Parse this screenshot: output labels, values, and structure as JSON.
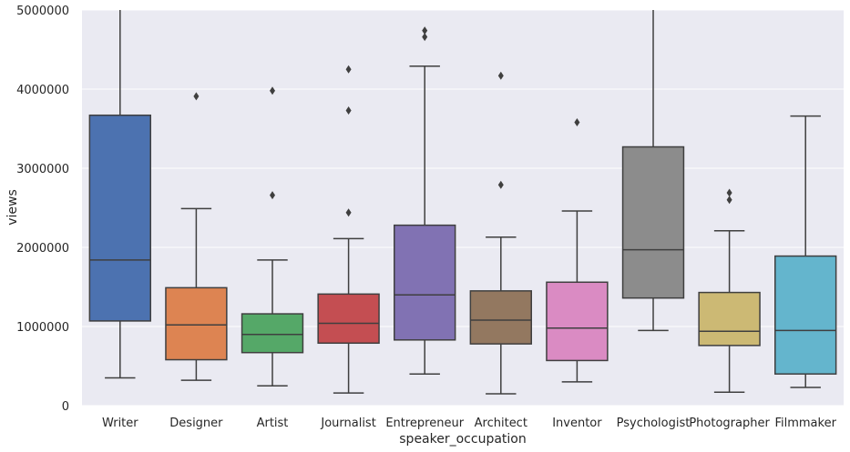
{
  "chart_data": {
    "type": "boxplot",
    "xlabel": "speaker_occupation",
    "ylabel": "views",
    "ylim": [
      0,
      5000000
    ],
    "yticks": [
      0,
      1000000,
      2000000,
      3000000,
      4000000,
      5000000
    ],
    "ytick_labels": [
      "0",
      "1000000",
      "2000000",
      "3000000",
      "4000000",
      "5000000"
    ],
    "grid": true,
    "background": "#EAEAF2",
    "categories": [
      "Writer",
      "Designer",
      "Artist",
      "Journalist",
      "Entrepreneur",
      "Architect",
      "Inventor",
      "Psychologist",
      "Photographer",
      "Filmmaker"
    ],
    "colors": [
      "#4C72B0",
      "#DD8452",
      "#55A868",
      "#C44E52",
      "#8172B3",
      "#937860",
      "#DA8BC3",
      "#8C8C8C",
      "#CCB974",
      "#64B5CD"
    ],
    "boxes": [
      {
        "q1": 1070000,
        "median": 1840000,
        "q3": 3670000,
        "whisker_low": 350000,
        "whisker_high": 5000000,
        "outliers": []
      },
      {
        "q1": 580000,
        "median": 1020000,
        "q3": 1490000,
        "whisker_low": 320000,
        "whisker_high": 2490000,
        "outliers": [
          3910000
        ]
      },
      {
        "q1": 670000,
        "median": 900000,
        "q3": 1160000,
        "whisker_low": 250000,
        "whisker_high": 1840000,
        "outliers": [
          2660000,
          3980000
        ]
      },
      {
        "q1": 790000,
        "median": 1040000,
        "q3": 1410000,
        "whisker_low": 160000,
        "whisker_high": 2110000,
        "outliers": [
          2440000,
          3730000,
          4250000
        ]
      },
      {
        "q1": 830000,
        "median": 1400000,
        "q3": 2280000,
        "whisker_low": 400000,
        "whisker_high": 4290000,
        "outliers": [
          4660000,
          4740000
        ]
      },
      {
        "q1": 780000,
        "median": 1080000,
        "q3": 1450000,
        "whisker_low": 150000,
        "whisker_high": 2130000,
        "outliers": [
          2790000,
          4170000
        ]
      },
      {
        "q1": 570000,
        "median": 980000,
        "q3": 1560000,
        "whisker_low": 300000,
        "whisker_high": 2460000,
        "outliers": [
          3580000
        ]
      },
      {
        "q1": 1360000,
        "median": 1970000,
        "q3": 3270000,
        "whisker_low": 950000,
        "whisker_high": 5000000,
        "outliers": []
      },
      {
        "q1": 760000,
        "median": 940000,
        "q3": 1430000,
        "whisker_low": 170000,
        "whisker_high": 2210000,
        "outliers": [
          2600000,
          2690000
        ]
      },
      {
        "q1": 400000,
        "median": 950000,
        "q3": 1890000,
        "whisker_low": 230000,
        "whisker_high": 3660000,
        "outliers": []
      }
    ]
  }
}
